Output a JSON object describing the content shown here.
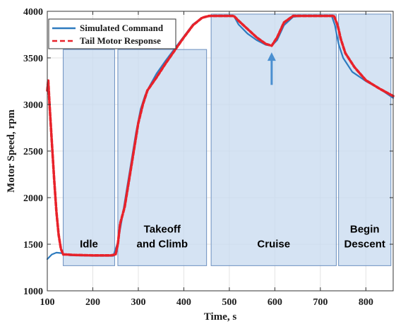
{
  "chart_data": {
    "type": "line",
    "xlabel": "Time, s",
    "ylabel": "Motor Speed, rpm",
    "xlim": [
      100,
      860
    ],
    "ylim": [
      1000,
      4000
    ],
    "xticks": [
      100,
      200,
      300,
      400,
      500,
      600,
      700,
      800
    ],
    "yticks": [
      1000,
      1500,
      2000,
      2500,
      3000,
      3500,
      4000
    ],
    "grid": true,
    "legend_position": "top-left",
    "series": [
      {
        "name": "Simulated Command",
        "style": "solid",
        "color": "#2e7bbf",
        "x": [
          100,
          110,
          120,
          130,
          140,
          150,
          200,
          245,
          255,
          265,
          275,
          285,
          295,
          305,
          315,
          325,
          340,
          360,
          380,
          400,
          420,
          440,
          455,
          462,
          470,
          490,
          510,
          520,
          540,
          560,
          580,
          593,
          605,
          620,
          640,
          660,
          700,
          725,
          732,
          740,
          750,
          770,
          800,
          830,
          860
        ],
        "y": [
          1340,
          1390,
          1410,
          1405,
          1390,
          1380,
          1375,
          1375,
          1520,
          1800,
          2100,
          2400,
          2700,
          2950,
          3100,
          3200,
          3330,
          3470,
          3600,
          3730,
          3860,
          3930,
          3945,
          3950,
          3950,
          3950,
          3950,
          3860,
          3760,
          3690,
          3640,
          3630,
          3690,
          3850,
          3940,
          3950,
          3950,
          3950,
          3850,
          3650,
          3500,
          3350,
          3250,
          3170,
          3070
        ]
      },
      {
        "name": "Tail Motor Response",
        "style": "dashed",
        "color": "#e8222a",
        "x": [
          100,
          102,
          105,
          110,
          115,
          120,
          125,
          130,
          135,
          140,
          160,
          200,
          240,
          250,
          255,
          260,
          270,
          280,
          290,
          300,
          310,
          320,
          340,
          360,
          380,
          400,
          420,
          440,
          455,
          462,
          470,
          490,
          510,
          520,
          540,
          560,
          580,
          593,
          605,
          620,
          640,
          660,
          700,
          730,
          738,
          745,
          755,
          775,
          800,
          830,
          860
        ],
        "y": [
          3150,
          3260,
          3000,
          2600,
          2200,
          1850,
          1600,
          1450,
          1390,
          1390,
          1385,
          1380,
          1380,
          1390,
          1500,
          1720,
          1900,
          2200,
          2500,
          2800,
          3000,
          3150,
          3290,
          3440,
          3580,
          3720,
          3850,
          3930,
          3950,
          3950,
          3950,
          3950,
          3950,
          3900,
          3810,
          3720,
          3650,
          3630,
          3720,
          3880,
          3950,
          3950,
          3950,
          3950,
          3850,
          3700,
          3550,
          3400,
          3260,
          3170,
          3090
        ]
      }
    ],
    "phases": [
      {
        "label": [
          "Idle"
        ],
        "x_start": 135,
        "x_end": 248,
        "y_bottom": 1270,
        "y_top": 3590
      },
      {
        "label": [
          "Takeoff",
          "and Climb"
        ],
        "x_start": 255,
        "x_end": 450,
        "y_bottom": 1270,
        "y_top": 3590
      },
      {
        "label": [
          "Cruise"
        ],
        "x_start": 460,
        "x_end": 735,
        "y_bottom": 1270,
        "y_top": 3970
      },
      {
        "label": [
          "Begin",
          "Descent"
        ],
        "x_start": 740,
        "x_end": 855,
        "y_bottom": 1270,
        "y_top": 3970
      }
    ],
    "annotations": [
      {
        "type": "arrow",
        "x": 593,
        "y_from": 3210,
        "y_to": 3560,
        "color": "#4a8fd0"
      }
    ]
  }
}
